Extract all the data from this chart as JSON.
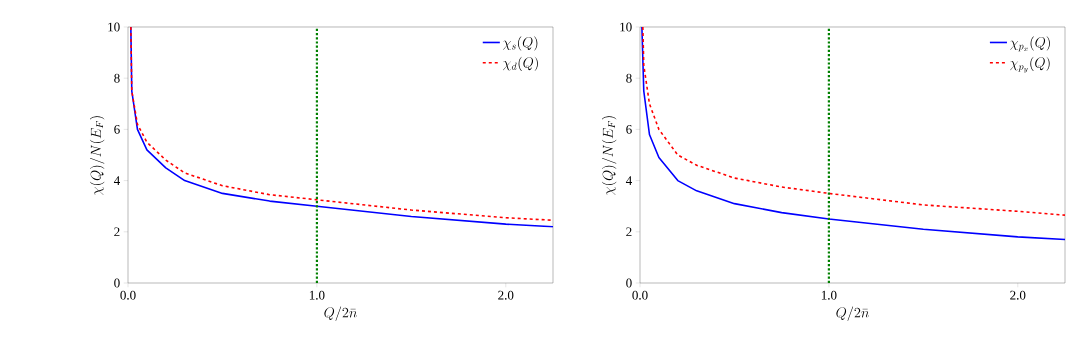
{
  "chart_data": [
    {
      "type": "line",
      "xlabel": "Q/2\\bar{n}",
      "ylabel": "\\chi(Q)/N(E_F)",
      "xlim": [
        0,
        2.25
      ],
      "ylim": [
        0,
        10
      ],
      "xticks": [
        {
          "value": 0,
          "label": "0.0"
        },
        {
          "value": 1,
          "label": "1.0"
        },
        {
          "value": 2,
          "label": "2.0"
        }
      ],
      "yticks": [
        0,
        2,
        4,
        6,
        8,
        10
      ],
      "legend": "top right",
      "ref_lines": [
        {
          "axis": "x",
          "value": 1,
          "color": "#008000",
          "line_style": "dotted"
        }
      ],
      "series": [
        {
          "name": "\\chi_s(Q)",
          "color": "#0000ff",
          "line_style": "solid",
          "x": [
            0.015,
            0.02,
            0.05,
            0.1,
            0.2,
            0.3,
            0.5,
            0.75,
            1.0,
            1.5,
            2.0,
            2.25
          ],
          "values": [
            10,
            7.5,
            6,
            5.2,
            4.5,
            4.0,
            3.5,
            3.2,
            3.0,
            2.6,
            2.3,
            2.2
          ]
        },
        {
          "name": "\\chi_d(Q)",
          "color": "#ff0000",
          "line_style": "dashed",
          "x": [
            0.015,
            0.02,
            0.05,
            0.1,
            0.2,
            0.3,
            0.5,
            0.75,
            1.0,
            1.5,
            2.0,
            2.25
          ],
          "values": [
            10,
            7.5,
            6.2,
            5.5,
            4.8,
            4.3,
            3.8,
            3.45,
            3.25,
            2.85,
            2.55,
            2.45
          ]
        }
      ]
    },
    {
      "type": "line",
      "xlabel": "Q/2\\bar{n}",
      "ylabel": "\\chi(Q)/N(E_F)",
      "xlim": [
        0,
        2.25
      ],
      "ylim": [
        0,
        10
      ],
      "xticks": [
        {
          "value": 0,
          "label": "0.0"
        },
        {
          "value": 1,
          "label": "1.0"
        },
        {
          "value": 2,
          "label": "2.0"
        }
      ],
      "yticks": [
        0,
        2,
        4,
        6,
        8,
        10
      ],
      "legend": "top right",
      "ref_lines": [
        {
          "axis": "x",
          "value": 1,
          "color": "#008000",
          "line_style": "dotted"
        }
      ],
      "series": [
        {
          "name": "\\chi_{p_x}(Q)",
          "color": "#0000ff",
          "line_style": "solid",
          "x": [
            0.01,
            0.02,
            0.05,
            0.1,
            0.2,
            0.3,
            0.5,
            0.75,
            1.0,
            1.5,
            2.0,
            2.25
          ],
          "values": [
            10,
            7.5,
            5.8,
            4.9,
            4.0,
            3.6,
            3.1,
            2.75,
            2.5,
            2.1,
            1.8,
            1.7
          ]
        },
        {
          "name": "\\chi_{p_y}(Q)",
          "color": "#ff0000",
          "line_style": "dashed",
          "x": [
            0.015,
            0.02,
            0.05,
            0.1,
            0.2,
            0.3,
            0.5,
            0.75,
            1.0,
            1.5,
            2.0,
            2.25
          ],
          "values": [
            10,
            8.5,
            7.0,
            6.0,
            5.0,
            4.6,
            4.1,
            3.75,
            3.5,
            3.05,
            2.8,
            2.65
          ]
        }
      ]
    }
  ]
}
